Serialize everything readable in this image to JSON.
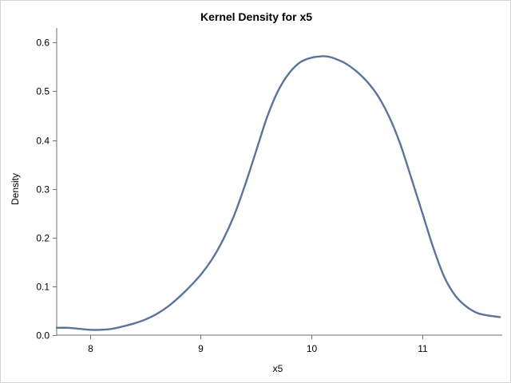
{
  "chart_data": {
    "type": "line",
    "title": "Kernel Density for x5",
    "xlabel": "x5",
    "ylabel": "Density",
    "xlim": [
      7.7,
      11.72
    ],
    "ylim": [
      0,
      0.63
    ],
    "x_ticks": [
      8,
      9,
      10,
      11
    ],
    "x_tick_labels": [
      "8",
      "9",
      "10",
      "11"
    ],
    "y_ticks": [
      0.0,
      0.1,
      0.2,
      0.3,
      0.4,
      0.5,
      0.6
    ],
    "y_tick_labels": [
      "0.0",
      "0.1",
      "0.2",
      "0.3",
      "0.4",
      "0.5",
      "0.6"
    ],
    "grid": false,
    "series": [
      {
        "color": "#5b7499",
        "x": [
          7.7,
          7.8,
          7.9,
          8.0,
          8.1,
          8.2,
          8.3,
          8.4,
          8.5,
          8.6,
          8.7,
          8.8,
          8.9,
          9.0,
          9.1,
          9.2,
          9.3,
          9.4,
          9.5,
          9.6,
          9.7,
          9.8,
          9.9,
          10.0,
          10.1,
          10.15,
          10.2,
          10.3,
          10.4,
          10.5,
          10.6,
          10.7,
          10.8,
          10.9,
          11.0,
          11.1,
          11.2,
          11.3,
          11.4,
          11.5,
          11.6,
          11.7
        ],
        "values": [
          0.015,
          0.015,
          0.013,
          0.011,
          0.011,
          0.013,
          0.018,
          0.024,
          0.032,
          0.043,
          0.058,
          0.077,
          0.099,
          0.124,
          0.155,
          0.195,
          0.245,
          0.308,
          0.378,
          0.448,
          0.502,
          0.538,
          0.56,
          0.569,
          0.572,
          0.571,
          0.568,
          0.558,
          0.542,
          0.52,
          0.49,
          0.448,
          0.392,
          0.322,
          0.25,
          0.178,
          0.118,
          0.08,
          0.058,
          0.045,
          0.04,
          0.037
        ]
      }
    ]
  }
}
